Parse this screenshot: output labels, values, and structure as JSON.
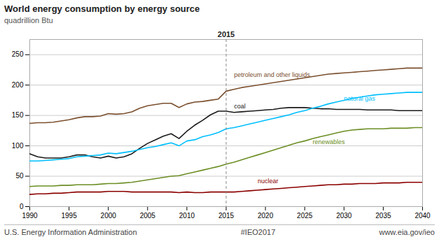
{
  "chart_data": {
    "type": "line",
    "title": "World energy consumption by energy source",
    "y_label": "quadrillion Btu",
    "footer": [
      "U.S. Energy Information Administration",
      "#IEO2017",
      "www.eia.gov/ieo"
    ],
    "xlim": [
      1990,
      2040
    ],
    "ylim": [
      0,
      275
    ],
    "xticks": [
      1990,
      1995,
      2000,
      2005,
      2010,
      2015,
      2020,
      2025,
      2030,
      2035,
      2040
    ],
    "yticks": [
      0,
      50,
      100,
      150,
      200,
      250
    ],
    "grid": true,
    "x": [
      1990,
      1991,
      1992,
      1993,
      1994,
      1995,
      1996,
      1997,
      1998,
      1999,
      2000,
      2001,
      2002,
      2003,
      2004,
      2005,
      2006,
      2007,
      2008,
      2009,
      2010,
      2011,
      2012,
      2013,
      2014,
      2015,
      2016,
      2017,
      2018,
      2019,
      2020,
      2021,
      2022,
      2023,
      2024,
      2025,
      2026,
      2027,
      2028,
      2029,
      2030,
      2031,
      2032,
      2033,
      2034,
      2035,
      2036,
      2037,
      2038,
      2039,
      2040
    ],
    "series": [
      {
        "name": "petroleum and other liquids",
        "color": "#7B4F2E",
        "values": [
          137,
          138,
          138,
          139,
          141,
          143,
          146,
          148,
          148,
          149,
          153,
          152,
          153,
          156,
          162,
          166,
          168,
          170,
          170,
          163,
          169,
          172,
          173,
          175,
          177,
          190,
          193,
          196,
          198,
          200,
          202,
          204,
          206,
          208,
          210,
          212,
          214,
          216,
          218,
          219,
          220,
          221,
          222,
          223,
          224,
          225,
          226,
          227,
          228,
          228,
          228
        ]
      },
      {
        "name": "coal",
        "color": "#1a1a1a",
        "values": [
          87,
          82,
          80,
          80,
          80,
          82,
          85,
          85,
          82,
          80,
          83,
          80,
          82,
          87,
          96,
          104,
          110,
          116,
          120,
          112,
          124,
          134,
          142,
          151,
          157,
          157,
          155,
          156,
          157,
          158,
          159,
          160,
          162,
          163,
          163,
          163,
          162,
          161,
          161,
          160,
          160,
          160,
          160,
          159,
          159,
          159,
          159,
          158,
          158,
          158,
          158
        ]
      },
      {
        "name": "natural gas",
        "color": "#00BFFF",
        "values": [
          75,
          75,
          76,
          77,
          78,
          79,
          82,
          83,
          84,
          85,
          88,
          87,
          89,
          91,
          94,
          97,
          99,
          102,
          105,
          100,
          108,
          110,
          115,
          118,
          122,
          128,
          130,
          133,
          136,
          139,
          142,
          145,
          148,
          151,
          155,
          158,
          162,
          165,
          169,
          172,
          175,
          178,
          180,
          182,
          184,
          185,
          186,
          187,
          188,
          188,
          188
        ]
      },
      {
        "name": "renewables",
        "color": "#6B8E23",
        "values": [
          33,
          34,
          34,
          34,
          35,
          35,
          36,
          36,
          36,
          37,
          38,
          38,
          39,
          40,
          42,
          44,
          46,
          48,
          50,
          51,
          54,
          57,
          60,
          63,
          66,
          70,
          73,
          77,
          81,
          85,
          89,
          93,
          97,
          101,
          105,
          108,
          112,
          115,
          118,
          121,
          124,
          126,
          127,
          128,
          128,
          128,
          129,
          129,
          129,
          130,
          130
        ]
      },
      {
        "name": "nuclear",
        "color": "#8B0000",
        "values": [
          20,
          21,
          21,
          22,
          22,
          23,
          24,
          24,
          24,
          24,
          25,
          25,
          25,
          24,
          24,
          24,
          24,
          24,
          24,
          23,
          24,
          23,
          23,
          24,
          24,
          24,
          24,
          25,
          26,
          27,
          28,
          29,
          30,
          31,
          32,
          33,
          34,
          35,
          36,
          36,
          37,
          37,
          38,
          38,
          38,
          39,
          39,
          39,
          40,
          40,
          40
        ]
      }
    ],
    "annotations": [
      {
        "x": 2016,
        "y": 214,
        "text": "petroleum and other liquids",
        "color": "#7B4F2E"
      },
      {
        "x": 2016,
        "y": 162,
        "text": "coal",
        "color": "#1a1a1a"
      },
      {
        "x": 2030,
        "y": 174,
        "text": "natural gas",
        "color": "#00BFFF"
      },
      {
        "x": 2026,
        "y": 103,
        "text": "renewables",
        "color": "#6B8E23"
      },
      {
        "x": 2019,
        "y": 38,
        "text": "nuclear",
        "color": "#8B0000"
      }
    ],
    "vertical_line": {
      "x": 2015,
      "label": "2015"
    }
  }
}
